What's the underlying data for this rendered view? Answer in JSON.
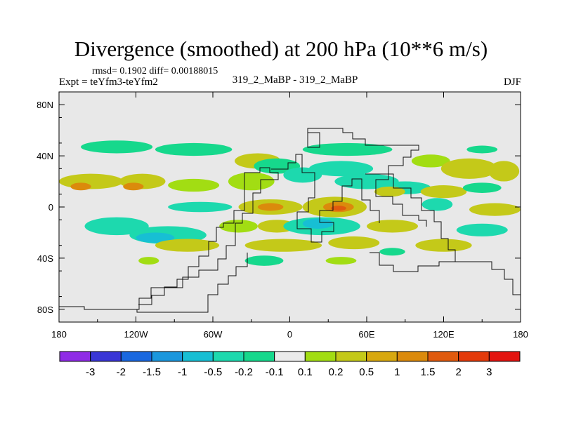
{
  "chart_data": {
    "type": "heatmap",
    "title": "Divergence (smoothed) at 200 hPa (10**6 m/s)",
    "stats": "rmsd= 0.1902 diff= 0.00188015",
    "experiment": "Expt = teYfm3-teYfm2",
    "case": "319_2_MaBP - 319_2_MaBP",
    "season": "DJF",
    "x_ticks": [
      "180",
      "120W",
      "60W",
      "0",
      "60E",
      "120E",
      "180"
    ],
    "y_ticks": [
      "80N",
      "40N",
      "0",
      "40S",
      "80S"
    ],
    "xlim": [
      -180,
      180
    ],
    "ylim": [
      -90,
      90
    ],
    "colorbar": {
      "labels": [
        "-3",
        "-2",
        "-1.5",
        "-1",
        "-0.5",
        "-0.2",
        "-0.1",
        "0.1",
        "0.2",
        "0.5",
        "1",
        "1.5",
        "2",
        "3"
      ],
      "colors": [
        "#8f2be6",
        "#3a36d6",
        "#1a68e0",
        "#1b97dd",
        "#17bfd4",
        "#1dd9ae",
        "#16d88c",
        "#ebebeb",
        "#a2dd13",
        "#c4c919",
        "#d8a80f",
        "#db8a0c",
        "#e05a0e",
        "#e33a0b",
        "#e31410"
      ]
    },
    "blobs": [
      {
        "lon": -135,
        "lat": 47,
        "rx": 28,
        "ry": 5,
        "v": -0.15
      },
      {
        "lon": -75,
        "lat": 45,
        "rx": 30,
        "ry": 5,
        "v": -0.15
      },
      {
        "lon": 45,
        "lat": 45,
        "rx": 35,
        "ry": 5,
        "v": -0.15
      },
      {
        "lon": 150,
        "lat": 45,
        "rx": 12,
        "ry": 3,
        "v": -0.15
      },
      {
        "lon": -25,
        "lat": 36,
        "rx": 18,
        "ry": 6,
        "v": 0.25
      },
      {
        "lon": -10,
        "lat": 32,
        "rx": 18,
        "ry": 6,
        "v": -0.15
      },
      {
        "lon": 110,
        "lat": 36,
        "rx": 15,
        "ry": 5,
        "v": 0.15
      },
      {
        "lon": 140,
        "lat": 30,
        "rx": 22,
        "ry": 8,
        "v": 0.3
      },
      {
        "lon": 167,
        "lat": 28,
        "rx": 12,
        "ry": 8,
        "v": 0.3
      },
      {
        "lon": -155,
        "lat": 20,
        "rx": 25,
        "ry": 6,
        "v": 0.3
      },
      {
        "lon": -163,
        "lat": 16,
        "rx": 8,
        "ry": 3,
        "v": 1.2
      },
      {
        "lon": -115,
        "lat": 20,
        "rx": 18,
        "ry": 6,
        "v": 0.3
      },
      {
        "lon": -122,
        "lat": 16,
        "rx": 8,
        "ry": 3,
        "v": 1.2
      },
      {
        "lon": -75,
        "lat": 17,
        "rx": 20,
        "ry": 5,
        "v": 0.2
      },
      {
        "lon": -30,
        "lat": 20,
        "rx": 18,
        "ry": 7,
        "v": 0.2
      },
      {
        "lon": 10,
        "lat": 25,
        "rx": 15,
        "ry": 6,
        "v": -0.3
      },
      {
        "lon": 40,
        "lat": 30,
        "rx": 25,
        "ry": 6,
        "v": -0.3
      },
      {
        "lon": 60,
        "lat": 20,
        "rx": 25,
        "ry": 6,
        "v": -0.3
      },
      {
        "lon": 90,
        "lat": 15,
        "rx": 20,
        "ry": 5,
        "v": -0.3
      },
      {
        "lon": 78,
        "lat": 12,
        "rx": 12,
        "ry": 4,
        "v": 0.3
      },
      {
        "lon": 120,
        "lat": 12,
        "rx": 18,
        "ry": 5,
        "v": 0.3
      },
      {
        "lon": 150,
        "lat": 15,
        "rx": 15,
        "ry": 4,
        "v": -0.15
      },
      {
        "lon": -70,
        "lat": 0,
        "rx": 25,
        "ry": 4,
        "v": -0.3
      },
      {
        "lon": -15,
        "lat": 0,
        "rx": 25,
        "ry": 6,
        "v": 0.3
      },
      {
        "lon": -15,
        "lat": 0,
        "rx": 10,
        "ry": 3,
        "v": 1.2
      },
      {
        "lon": 35,
        "lat": 0,
        "rx": 25,
        "ry": 8,
        "v": 0.3
      },
      {
        "lon": 38,
        "lat": 0,
        "rx": 12,
        "ry": 4,
        "v": 1.2
      },
      {
        "lon": 38,
        "lat": -1,
        "rx": 6,
        "ry": 2,
        "v": 1.7
      },
      {
        "lon": 115,
        "lat": 2,
        "rx": 12,
        "ry": 5,
        "v": -0.3
      },
      {
        "lon": 160,
        "lat": -2,
        "rx": 20,
        "ry": 5,
        "v": 0.25
      },
      {
        "lon": -135,
        "lat": -15,
        "rx": 25,
        "ry": 7,
        "v": -0.3
      },
      {
        "lon": -95,
        "lat": -22,
        "rx": 30,
        "ry": 7,
        "v": -0.3
      },
      {
        "lon": -105,
        "lat": -24,
        "rx": 15,
        "ry": 4,
        "v": -0.7
      },
      {
        "lon": -40,
        "lat": -15,
        "rx": 15,
        "ry": 5,
        "v": 0.2
      },
      {
        "lon": -10,
        "lat": -15,
        "rx": 15,
        "ry": 5,
        "v": 0.3
      },
      {
        "lon": 25,
        "lat": -15,
        "rx": 30,
        "ry": 7,
        "v": -0.3
      },
      {
        "lon": 22,
        "lat": -13,
        "rx": 12,
        "ry": 4,
        "v": -0.7
      },
      {
        "lon": 80,
        "lat": -15,
        "rx": 20,
        "ry": 5,
        "v": 0.3
      },
      {
        "lon": 150,
        "lat": -18,
        "rx": 20,
        "ry": 5,
        "v": -0.3
      },
      {
        "lon": -80,
        "lat": -30,
        "rx": 25,
        "ry": 5,
        "v": 0.25
      },
      {
        "lon": -5,
        "lat": -30,
        "rx": 30,
        "ry": 5,
        "v": 0.3
      },
      {
        "lon": 50,
        "lat": -28,
        "rx": 20,
        "ry": 5,
        "v": 0.3
      },
      {
        "lon": 120,
        "lat": -30,
        "rx": 22,
        "ry": 5,
        "v": 0.3
      },
      {
        "lon": -20,
        "lat": -42,
        "rx": 15,
        "ry": 4,
        "v": -0.15
      },
      {
        "lon": 40,
        "lat": -42,
        "rx": 12,
        "ry": 3,
        "v": 0.2
      },
      {
        "lon": 80,
        "lat": -35,
        "rx": 10,
        "ry": 3,
        "v": -0.15
      },
      {
        "lon": -110,
        "lat": -42,
        "rx": 8,
        "ry": 3,
        "v": 0.2
      }
    ]
  }
}
